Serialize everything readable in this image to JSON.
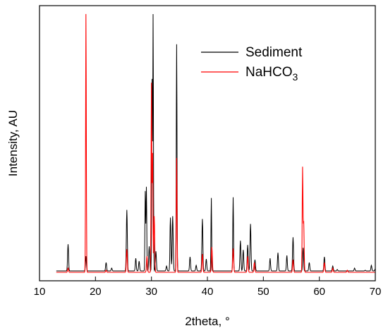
{
  "chart_data": {
    "type": "line",
    "title": "",
    "xlabel": "2theta, °",
    "ylabel": "Intensity, AU",
    "xlim": [
      10,
      70
    ],
    "y_tick_labels_shown": false,
    "grid": false,
    "legend_placement": "top-right",
    "x_ticks": [
      10,
      20,
      30,
      40,
      50,
      60,
      70
    ],
    "series": [
      {
        "name": "Sediment",
        "legend_label": "Sediment",
        "color": "#000000",
        "baseline": 4,
        "x": [
          13,
          15.1,
          18.3,
          21.9,
          22.9,
          25.6,
          27.2,
          27.8,
          28.9,
          29.1,
          29.6,
          30.1,
          30.3,
          30.8,
          32.7,
          33.4,
          33.8,
          34.5,
          36.9,
          38.0,
          39.1,
          39.8,
          40.7,
          44.6,
          45.9,
          46.4,
          47.2,
          47.7,
          48.5,
          51.2,
          52.6,
          54.2,
          55.3,
          57.1,
          58.2,
          60.9,
          62.4,
          63.2,
          66.3,
          68.2,
          69.3,
          70
        ],
        "y": [
          4,
          42,
          25,
          16,
          8,
          91,
          22,
          18,
          117,
          123,
          39,
          275,
          368,
          32,
          11,
          80,
          82,
          327,
          24,
          12,
          78,
          21,
          108,
          109,
          47,
          34,
          41,
          71,
          20,
          22,
          30,
          26,
          52,
          37,
          16,
          24,
          11,
          6,
          8,
          5,
          12,
          7
        ]
      },
      {
        "name": "NaHCO3",
        "legend_label": "NaHCO",
        "legend_subscript": "3",
        "color": "#ff0000",
        "baseline": 2,
        "x": [
          13,
          15.1,
          18.3,
          21.9,
          25.6,
          29.2,
          30.0,
          30.2,
          30.5,
          34.5,
          39.1,
          40.8,
          44.6,
          47.2,
          48.4,
          55.3,
          57.0,
          57.2,
          60.9,
          62.4,
          65.0,
          70
        ],
        "y": [
          2,
          8,
          370,
          5,
          35,
          25,
          271,
          170,
          82,
          165,
          28,
          38,
          36,
          25,
          16,
          20,
          148,
          74,
          16,
          8,
          5,
          2
        ]
      }
    ]
  }
}
